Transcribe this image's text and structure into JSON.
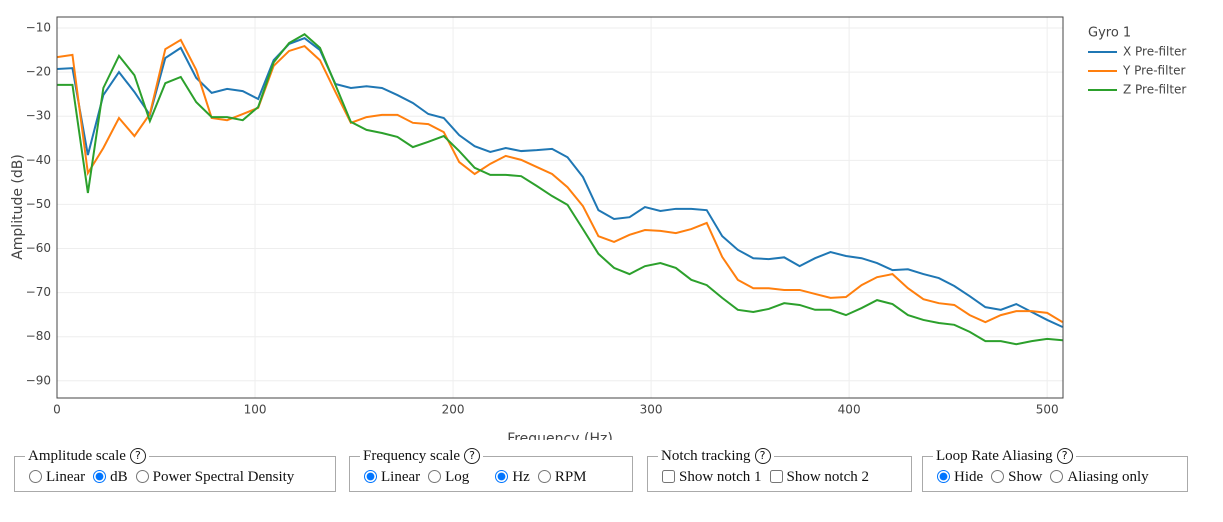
{
  "chart_data": {
    "type": "line",
    "legend_title": "Gyro 1",
    "xlabel": "Frequency (Hz)",
    "ylabel": "Amplitude (dB)",
    "x": [
      0,
      7.8,
      15.6,
      23.4,
      31.3,
      39.1,
      46.9,
      54.7,
      62.5,
      70.3,
      78.1,
      85.9,
      93.8,
      101.6,
      109.4,
      117.2,
      125,
      132.8,
      140.6,
      148.4,
      156.3,
      164.1,
      171.9,
      179.7,
      187.5,
      195.3,
      203.1,
      210.9,
      218.8,
      226.6,
      234.4,
      242.2,
      250,
      257.8,
      265.6,
      273.4,
      281.3,
      289.1,
      296.9,
      304.7,
      312.5,
      320.3,
      328.1,
      335.9,
      343.8,
      351.6,
      359.4,
      367.2,
      375,
      382.8,
      390.6,
      398.4,
      406.3,
      414.1,
      421.9,
      429.7,
      437.5,
      445.3,
      453.1,
      460.9,
      468.8,
      476.6,
      484.4,
      492.2,
      500,
      507.8
    ],
    "series": [
      {
        "name": "X Pre-filter",
        "color": "#1f77b4",
        "values": [
          -19.3,
          -19.1,
          -38.8,
          -25.2,
          -20,
          -24.5,
          -29.7,
          -16.8,
          -14.5,
          -21.3,
          -24.7,
          -23.8,
          -24.3,
          -26.1,
          -17.3,
          -13.6,
          -12.3,
          -15,
          -22.7,
          -23.6,
          -23.2,
          -23.6,
          -25.2,
          -27,
          -29.5,
          -30.4,
          -34.3,
          -36.8,
          -38.1,
          -37.2,
          -37.9,
          -37.7,
          -37.4,
          -39.3,
          -43.8,
          -51.3,
          -53.3,
          -52.9,
          -50.6,
          -51.5,
          -51,
          -51,
          -51.3,
          -57.2,
          -60.3,
          -62.2,
          -62.4,
          -62,
          -64,
          -62.2,
          -60.8,
          -61.7,
          -62.2,
          -63.3,
          -64.9,
          -64.7,
          -65.8,
          -66.7,
          -68.5,
          -70.8,
          -73.3,
          -73.9,
          -72.6,
          -74.4,
          -76.2,
          -77.8
        ]
      },
      {
        "name": "Y Pre-filter",
        "color": "#ff7f0e",
        "values": [
          -16.6,
          -16.1,
          -42.9,
          -37.2,
          -30.4,
          -34.5,
          -29.5,
          -14.8,
          -12.7,
          -19.5,
          -30.4,
          -30.9,
          -29.5,
          -28.1,
          -18.6,
          -15.2,
          -14.1,
          -17.3,
          -24.5,
          -31.5,
          -30.2,
          -29.7,
          -29.7,
          -31.5,
          -31.8,
          -33.6,
          -40.4,
          -43.1,
          -40.8,
          -39,
          -39.9,
          -41.5,
          -43.1,
          -46.1,
          -50.4,
          -57.2,
          -58.5,
          -56.9,
          -55.8,
          -56,
          -56.5,
          -55.6,
          -54.2,
          -61.9,
          -67.1,
          -69,
          -69,
          -69.4,
          -69.4,
          -70.3,
          -71.2,
          -71,
          -68.3,
          -66.5,
          -65.8,
          -69,
          -71.5,
          -72.4,
          -72.8,
          -75.1,
          -76.7,
          -75.1,
          -74.2,
          -74.2,
          -74.6,
          -76.7
        ]
      },
      {
        "name": "Z Pre-filter",
        "color": "#2ca02c",
        "values": [
          -22.9,
          -22.9,
          -47.4,
          -23.6,
          -16.3,
          -20.7,
          -31.1,
          -22.5,
          -21.1,
          -26.8,
          -30.2,
          -30.2,
          -30.9,
          -27.9,
          -17.8,
          -13.4,
          -11.4,
          -14.5,
          -22.9,
          -31.3,
          -33.1,
          -33.8,
          -34.7,
          -37,
          -35.8,
          -34.5,
          -37.9,
          -41.7,
          -43.3,
          -43.3,
          -43.6,
          -45.8,
          -48.1,
          -50.1,
          -55.6,
          -61.2,
          -64.4,
          -65.8,
          -64,
          -63.3,
          -64.4,
          -67.1,
          -68.3,
          -71.2,
          -73.9,
          -74.4,
          -73.7,
          -72.4,
          -72.8,
          -73.9,
          -73.9,
          -75.1,
          -73.5,
          -71.7,
          -72.6,
          -75.1,
          -76.2,
          -76.9,
          -77.3,
          -78.9,
          -81,
          -81,
          -81.7,
          -81,
          -80.5,
          -80.8
        ]
      }
    ],
    "xlim": [
      0,
      508
    ],
    "ylim": [
      -93.9,
      -7.5
    ],
    "xticks": [
      0,
      100,
      200,
      300,
      400,
      500
    ],
    "yticks": [
      {
        "value": -10,
        "label": "−10"
      },
      {
        "value": -20,
        "label": "−20"
      },
      {
        "value": -30,
        "label": "−30"
      },
      {
        "value": -40,
        "label": "−40"
      },
      {
        "value": -50,
        "label": "−50"
      },
      {
        "value": -60,
        "label": "−60"
      },
      {
        "value": -70,
        "label": "−70"
      },
      {
        "value": -80,
        "label": "−80"
      },
      {
        "value": -90,
        "label": "−90"
      }
    ],
    "grid": true,
    "legend": "right"
  },
  "controls": [
    {
      "legend": "Amplitude scale",
      "groups": [
        [
          {
            "type": "radio",
            "label": "Linear",
            "checked": false
          },
          {
            "type": "radio",
            "label": "dB",
            "checked": true
          },
          {
            "type": "radio",
            "label": "Power Spectral Density",
            "checked": false
          }
        ]
      ]
    },
    {
      "legend": "Frequency scale",
      "groups": [
        [
          {
            "type": "radio",
            "label": "Linear",
            "checked": true
          },
          {
            "type": "radio",
            "label": "Log",
            "checked": false
          }
        ],
        [
          {
            "type": "radio",
            "label": "Hz",
            "checked": true
          },
          {
            "type": "radio",
            "label": "RPM",
            "checked": false
          }
        ]
      ]
    },
    {
      "legend": "Notch tracking",
      "groups": [
        [
          {
            "type": "checkbox",
            "label": "Show notch 1",
            "checked": false
          },
          {
            "type": "checkbox",
            "label": "Show notch 2",
            "checked": false
          }
        ]
      ]
    },
    {
      "legend": "Loop Rate Aliasing",
      "groups": [
        [
          {
            "type": "radio",
            "label": "Hide",
            "checked": true
          },
          {
            "type": "radio",
            "label": "Show",
            "checked": false
          },
          {
            "type": "radio",
            "label": "Aliasing only",
            "checked": false
          }
        ]
      ]
    }
  ]
}
